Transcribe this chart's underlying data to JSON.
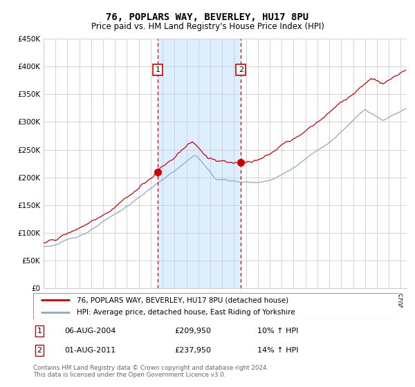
{
  "title": "76, POPLARS WAY, BEVERLEY, HU17 8PU",
  "subtitle": "Price paid vs. HM Land Registry's House Price Index (HPI)",
  "ylim": [
    0,
    450000
  ],
  "xlim_start": 1995.0,
  "xlim_end": 2025.5,
  "sale1_date": 2004.58,
  "sale1_price": 209950,
  "sale1_label": "1",
  "sale2_date": 2011.58,
  "sale2_price": 237950,
  "sale2_label": "2",
  "legend_line1": "76, POPLARS WAY, BEVERLEY, HU17 8PU (detached house)",
  "legend_line2": "HPI: Average price, detached house, East Riding of Yorkshire",
  "footer": "Contains HM Land Registry data © Crown copyright and database right 2024.\nThis data is licensed under the Open Government Licence v3.0.",
  "line_color_red": "#cc0000",
  "line_color_blue": "#88aacc",
  "shaded_color": "#ddeeff",
  "marker_box_color": "#cc0000",
  "grid_color": "#cccccc",
  "background_color": "#ffffff",
  "sale1_text": "06-AUG-2004",
  "sale1_price_text": "£209,950",
  "sale1_hpi_text": "10% ↑ HPI",
  "sale2_text": "01-AUG-2011",
  "sale2_price_text": "£237,950",
  "sale2_hpi_text": "14% ↑ HPI"
}
